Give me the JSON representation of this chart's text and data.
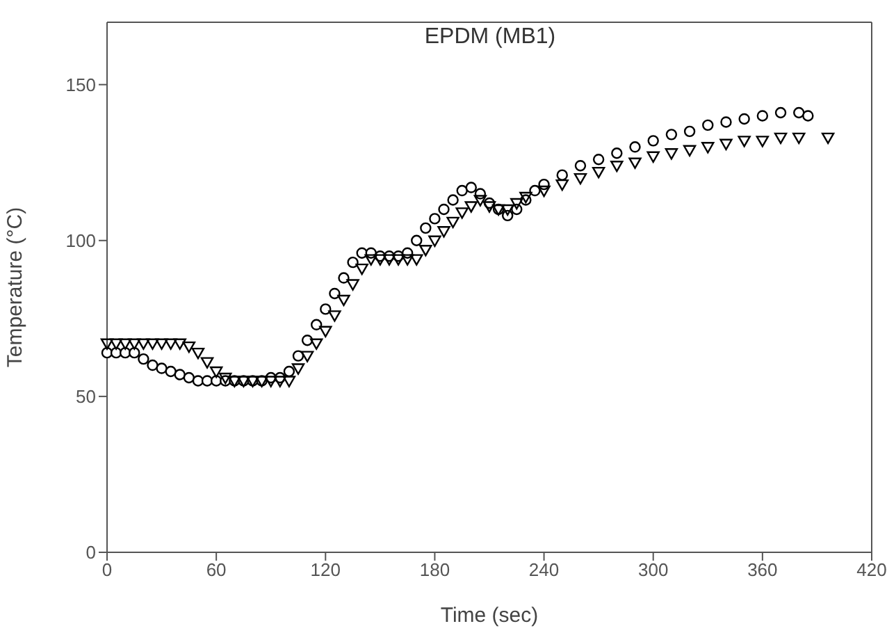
{
  "chart_data": {
    "type": "scatter",
    "title": "EPDM (MB1)",
    "xlabel": "Time (sec)",
    "ylabel": "Temperature (°C)",
    "xlim": [
      0,
      420
    ],
    "xticks": [
      0,
      60,
      120,
      180,
      240,
      300,
      360,
      420
    ],
    "ylim": [
      0,
      170
    ],
    "yticks": [
      0,
      50,
      100,
      150
    ],
    "legend": false,
    "series": [
      {
        "marker": "circle",
        "color": "#000000",
        "x": [
          0,
          5,
          10,
          15,
          20,
          25,
          30,
          35,
          40,
          45,
          50,
          55,
          60,
          65,
          70,
          75,
          80,
          85,
          90,
          95,
          100,
          105,
          110,
          115,
          120,
          125,
          130,
          135,
          140,
          145,
          150,
          155,
          160,
          165,
          170,
          175,
          180,
          185,
          190,
          195,
          200,
          205,
          210,
          215,
          220,
          225,
          230,
          235,
          240,
          250,
          260,
          270,
          280,
          290,
          300,
          310,
          320,
          330,
          340,
          350,
          360,
          370,
          380,
          385
        ],
        "values": [
          64,
          64,
          64,
          64,
          62,
          60,
          59,
          58,
          57,
          56,
          55,
          55,
          55,
          55,
          55,
          55,
          55,
          55,
          56,
          56,
          58,
          63,
          68,
          73,
          78,
          83,
          88,
          93,
          96,
          96,
          95,
          95,
          95,
          96,
          100,
          104,
          107,
          110,
          113,
          116,
          117,
          115,
          112,
          110,
          108,
          110,
          113,
          116,
          118,
          121,
          124,
          126,
          128,
          130,
          132,
          134,
          135,
          137,
          138,
          139,
          140,
          141,
          141,
          140
        ]
      },
      {
        "marker": "triangle",
        "color": "#000000",
        "x": [
          0,
          5,
          10,
          15,
          20,
          25,
          30,
          35,
          40,
          45,
          50,
          55,
          60,
          65,
          70,
          75,
          80,
          85,
          90,
          95,
          100,
          105,
          110,
          115,
          120,
          125,
          130,
          135,
          140,
          145,
          150,
          155,
          160,
          165,
          170,
          175,
          180,
          185,
          190,
          195,
          200,
          205,
          210,
          215,
          220,
          225,
          230,
          240,
          250,
          260,
          270,
          280,
          290,
          300,
          310,
          320,
          330,
          340,
          350,
          360,
          370,
          380,
          396
        ],
        "values": [
          67,
          67,
          67,
          67,
          67,
          67,
          67,
          67,
          67,
          66,
          64,
          61,
          58,
          56,
          55,
          55,
          55,
          55,
          55,
          55,
          55,
          59,
          63,
          67,
          71,
          76,
          81,
          86,
          91,
          94,
          94,
          94,
          94,
          94,
          94,
          97,
          100,
          103,
          106,
          109,
          111,
          113,
          111,
          110,
          110,
          112,
          114,
          116,
          118,
          120,
          122,
          124,
          125,
          127,
          128,
          129,
          130,
          131,
          132,
          132,
          133,
          133,
          133
        ]
      }
    ]
  }
}
